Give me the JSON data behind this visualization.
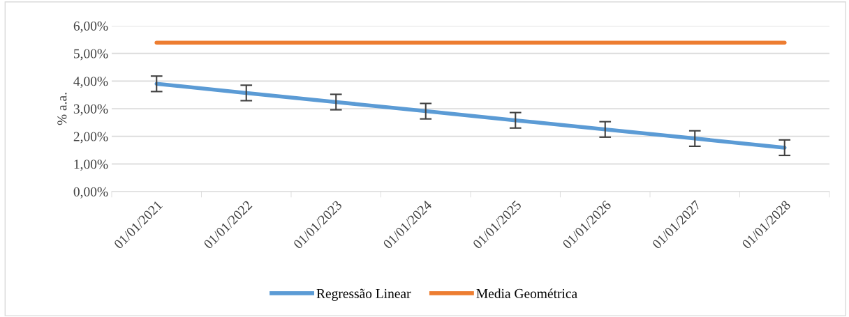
{
  "chart_data": {
    "type": "line",
    "ylabel": "% a.a.",
    "categories": [
      "01/01/2021",
      "01/01/2022",
      "01/01/2023",
      "01/01/2024",
      "01/01/2025",
      "01/01/2026",
      "01/01/2027",
      "01/01/2028"
    ],
    "series": [
      {
        "name": "Regressão Linear",
        "color": "#5b9bd5",
        "values": [
          3.9,
          3.57,
          3.24,
          2.91,
          2.58,
          2.25,
          1.92,
          1.59
        ],
        "errors": [
          0.28,
          0.28,
          0.28,
          0.28,
          0.28,
          0.28,
          0.28,
          0.28
        ]
      },
      {
        "name": "Media Geométrica",
        "color": "#ed7d31",
        "values": [
          5.39,
          5.39,
          5.39,
          5.39,
          5.39,
          5.39,
          5.39,
          5.39
        ]
      }
    ],
    "ylim": [
      0,
      6
    ],
    "yticks": [
      {
        "value": 0,
        "label": "0,00%"
      },
      {
        "value": 1,
        "label": "1,00%"
      },
      {
        "value": 2,
        "label": "2,00%"
      },
      {
        "value": 3,
        "label": "3,00%"
      },
      {
        "value": 4,
        "label": "4,00%"
      },
      {
        "value": 5,
        "label": "5,00%"
      },
      {
        "value": 6,
        "label": "6,00%"
      }
    ],
    "grid": "y",
    "legend": "bottom",
    "marker": "none",
    "line_style": "solid"
  }
}
